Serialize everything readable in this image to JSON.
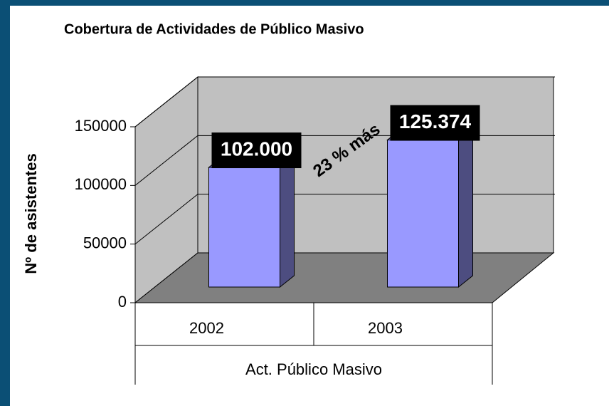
{
  "chart_data": {
    "type": "bar",
    "title": "Cobertura de Actividades de Público Masivo",
    "y_label": "Nº de asistentes",
    "x_label": "Act. Público Masivo",
    "categories": [
      "2002",
      "2003"
    ],
    "values": [
      102000,
      125374
    ],
    "value_labels": [
      "102.000",
      "125.374"
    ],
    "annotation": "23 % más",
    "color": "#9999ff",
    "ylim": [
      0,
      150000
    ],
    "yticks": [
      0,
      50000,
      100000,
      150000
    ],
    "grid": true
  }
}
